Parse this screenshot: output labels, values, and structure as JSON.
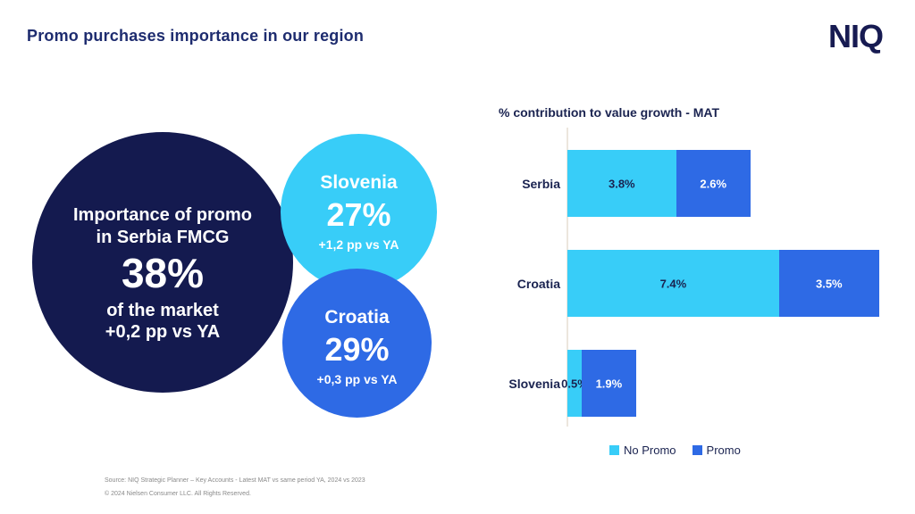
{
  "slide": {
    "title": "Promo purchases importance in our region",
    "logo_text": "NIQ",
    "footer": {
      "source": "Source: NIQ Strategic Planner – Key Accounts - Latest MAT vs same period YA, 2024 vs 2023",
      "copyright": "© 2024 Nielsen Consumer LLC. All Rights Reserved."
    }
  },
  "bubbles": {
    "serbia": {
      "line1": "Importance of promo",
      "line2": "in Serbia FMCG",
      "value": "38%",
      "line3": "of the market",
      "line4": "+0,2 pp vs YA"
    },
    "slovenia": {
      "name": "Slovenia",
      "value": "27%",
      "delta": "+1,2 pp vs YA"
    },
    "croatia": {
      "name": "Croatia",
      "value": "29%",
      "delta": "+0,3 pp vs YA"
    }
  },
  "colors": {
    "navy_circle": "#141a4f",
    "light_blue": "#38cdf8",
    "promo_blue": "#2e6ae5",
    "title_navy": "#1e2c6f",
    "chart_text": "#1a2350",
    "footer_gray": "#8a8a8a",
    "axis_line": "#ece6dd"
  },
  "chart_data": {
    "type": "bar",
    "orientation": "horizontal",
    "stacked": true,
    "title": "% contribution to value growth - MAT",
    "categories": [
      "Serbia",
      "Croatia",
      "Slovenia"
    ],
    "series": [
      {
        "name": "No Promo",
        "color": "#38cdf8",
        "values": [
          3.8,
          7.4,
          0.5
        ]
      },
      {
        "name": "Promo",
        "color": "#2e6ae5",
        "values": [
          2.6,
          3.5,
          1.9
        ]
      }
    ],
    "value_suffix": "%",
    "xlim": [
      0,
      11
    ],
    "grid": false,
    "legend_position": "bottom"
  }
}
